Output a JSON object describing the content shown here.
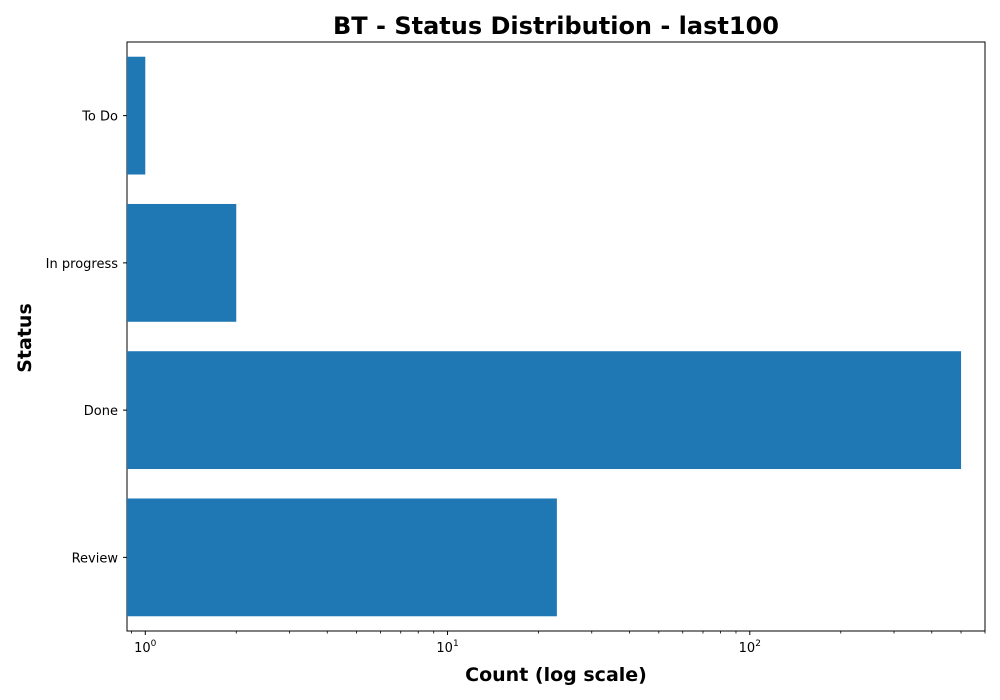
{
  "chart_data": {
    "type": "bar",
    "orientation": "horizontal",
    "title": "BT - Status Distribution - last100",
    "xlabel": "Count (log scale)",
    "ylabel": "Status",
    "x_scale": "log",
    "xlim": [
      0.87,
      600
    ],
    "x_major_ticks": [
      1,
      10,
      100
    ],
    "x_tick_labels": [
      {
        "base": "10",
        "exp": "0"
      },
      {
        "base": "10",
        "exp": "1"
      },
      {
        "base": "10",
        "exp": "2"
      }
    ],
    "categories": [
      "To Do",
      "In progress",
      "Done",
      "Review"
    ],
    "values": [
      1,
      2,
      500,
      23
    ],
    "grid": false,
    "legend": "none",
    "bar_color": "#1f77b4"
  }
}
